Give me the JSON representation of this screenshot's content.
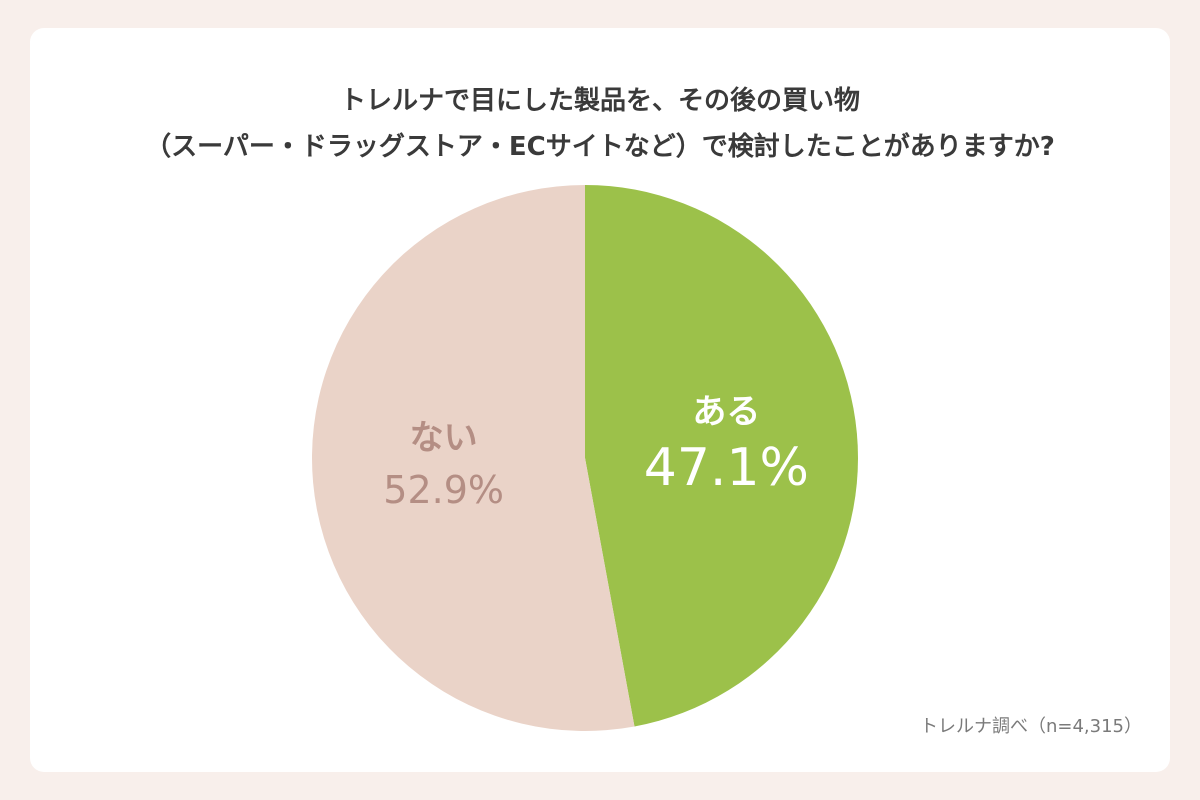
{
  "title": {
    "line1": "トレルナで目にした製品を、その後の買い物",
    "line2": "（スーパー・ドラッグストア・ECサイトなど）で検討したことがありますか?"
  },
  "source": "トレルナ調べ（n=4,315）",
  "chart_data": {
    "type": "pie",
    "title": "トレルナで目にした製品を、その後の買い物（スーパー・ドラッグストア・ECサイトなど）で検討したことがありますか?",
    "slices": [
      {
        "label": "ある",
        "value": 47.1,
        "value_label": "47.1%",
        "color": "#9cc14a",
        "text_color": "#ffffff"
      },
      {
        "label": "ない",
        "value": 52.9,
        "value_label": "52.9%",
        "color": "#ead3c8",
        "text_color": "#b48e84"
      }
    ],
    "start_angle": "12 o'clock",
    "direction": "clockwise"
  }
}
